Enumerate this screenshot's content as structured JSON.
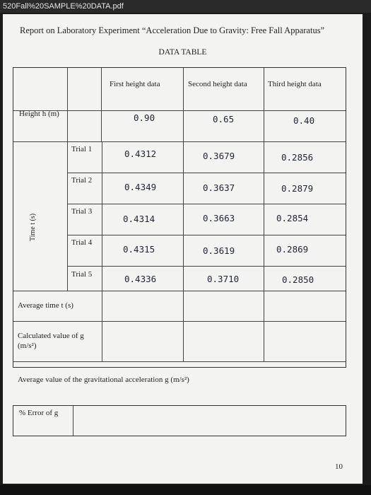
{
  "viewer": {
    "document_name": "520Fall%20SAMPLE%20DATA.pdf"
  },
  "report": {
    "title": "Report on Laboratory Experiment “Acceleration Due to Gravity: Free Fall Apparatus”",
    "table_caption": "DATA TABLE"
  },
  "table": {
    "columns": [
      "First height data",
      "Second height data",
      "Third height data"
    ],
    "height_label": "Height h (m)",
    "heights": [
      "0.90",
      "0.65",
      "0.40"
    ],
    "time_label": "Time t (s)",
    "trials": [
      {
        "label": "Trial 1",
        "values": [
          "0.4312",
          "0.3679",
          "0.2856"
        ]
      },
      {
        "label": "Trial 2",
        "values": [
          "0.4349",
          "0.3637",
          "0.2879"
        ]
      },
      {
        "label": "Trial 3",
        "values": [
          "0.4314",
          "0.3663",
          "0.2854"
        ]
      },
      {
        "label": "Trial 4",
        "values": [
          "0.4315",
          "0.3619",
          "0.2869"
        ]
      },
      {
        "label": "Trial 5",
        "values": [
          "0.4336",
          "0.3710",
          "0.2850"
        ]
      }
    ],
    "average_time_label": "Average time t (s)",
    "calculated_g_label": "Calculated value of g",
    "calculated_g_units": "(m/s²)",
    "average_g_label": "Average value of the gravitational acceleration g (m/s²)"
  },
  "error": {
    "label": "% Error of g"
  },
  "page": {
    "number": "10"
  }
}
